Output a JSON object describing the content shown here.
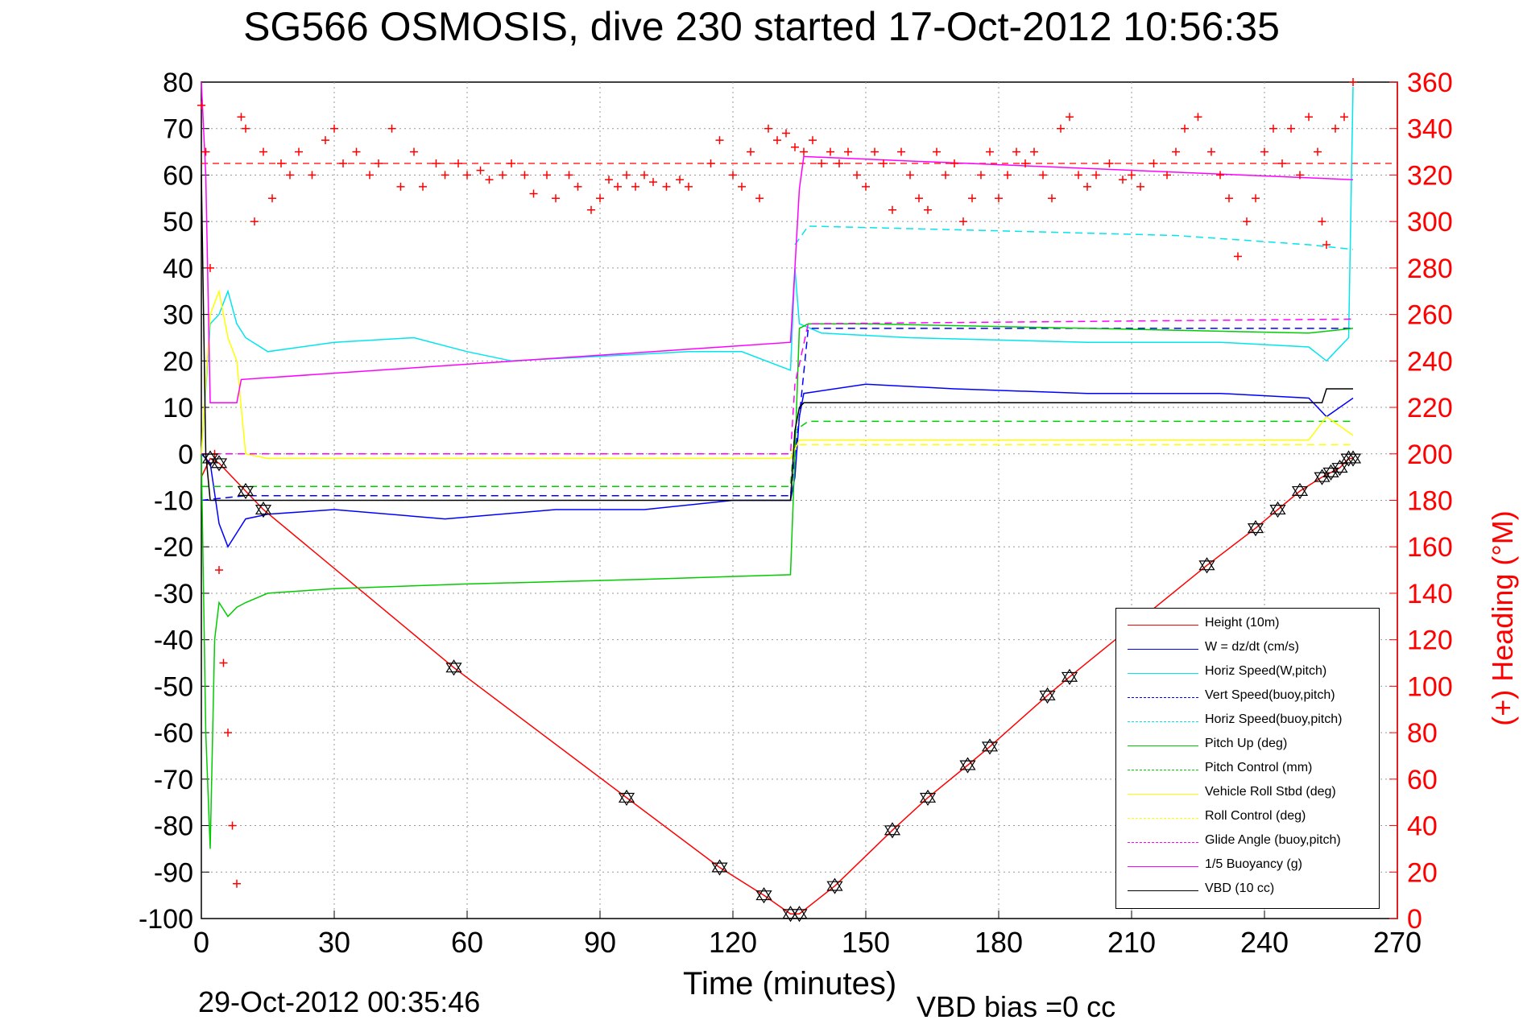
{
  "chart_data": {
    "type": "line",
    "title": "SG566 OSMOSIS, dive 230 started 17-Oct-2012 10:56:35",
    "xlabel": "Time (minutes)",
    "ylabel": "",
    "y2label": "(+) Heading (°M)",
    "xlim": [
      0,
      270
    ],
    "ylim": [
      -100,
      80
    ],
    "y2lim": [
      0,
      360
    ],
    "x_ticks": [
      0,
      30,
      60,
      90,
      120,
      150,
      180,
      210,
      240,
      270
    ],
    "y_ticks": [
      80,
      70,
      60,
      50,
      40,
      30,
      20,
      10,
      0,
      -10,
      -20,
      -30,
      -40,
      -50,
      -60,
      -70,
      -80,
      -90,
      -100
    ],
    "y2_ticks": [
      360,
      340,
      320,
      300,
      280,
      260,
      240,
      220,
      200,
      180,
      160,
      140,
      120,
      100,
      80,
      60,
      40,
      20,
      0
    ],
    "grid": true,
    "legend_position": "bottom-right",
    "footer_date": "29-Oct-2012 00:35:46",
    "footer_vbd": "VBD bias =0 cc",
    "series": [
      {
        "name": "Height (10m)",
        "color": "#ff0000",
        "style": "solid",
        "x": [
          0,
          2,
          4,
          10,
          14,
          57,
          96,
          117,
          127,
          133,
          135,
          143,
          156,
          164,
          173,
          178,
          191,
          196,
          227,
          238,
          243,
          248,
          253,
          255,
          257,
          259,
          260
        ],
        "y": [
          -5,
          -1,
          -2,
          -8,
          -12,
          -46,
          -74,
          -89,
          -95,
          -99,
          -99,
          -93,
          -81,
          -74,
          -67,
          -63,
          -52,
          -48,
          -24,
          -16,
          -12,
          -8,
          -5,
          -4,
          -3,
          -1,
          -1
        ]
      },
      {
        "name": "W = dz/dt (cm/s)",
        "color": "#0000ff",
        "style": "solid",
        "x": [
          0,
          2,
          4,
          6,
          8,
          10,
          15,
          30,
          55,
          80,
          100,
          120,
          133,
          134,
          135,
          136,
          150,
          170,
          200,
          230,
          250,
          254,
          260
        ],
        "y": [
          0,
          -2,
          -15,
          -20,
          -17,
          -14,
          -13,
          -12,
          -14,
          -12,
          -12,
          -10,
          -10,
          -5,
          8,
          13,
          15,
          14,
          13,
          13,
          12,
          8,
          12
        ]
      },
      {
        "name": "Horiz Speed(W,pitch)",
        "color": "#00e5ee",
        "style": "solid",
        "x": [
          0,
          2,
          4,
          6,
          8,
          10,
          15,
          30,
          48,
          60,
          70,
          90,
          110,
          122,
          133,
          134,
          135,
          140,
          160,
          200,
          230,
          250,
          254,
          259,
          260
        ],
        "y": [
          0,
          28,
          30,
          35,
          28,
          25,
          22,
          24,
          25,
          22,
          20,
          21,
          22,
          22,
          18,
          40,
          28,
          26,
          25,
          24,
          24,
          23,
          20,
          25,
          79
        ]
      },
      {
        "name": "Vert Speed(buoy,pitch)",
        "color": "#0000ff",
        "style": "dashed",
        "x": [
          0,
          10,
          133,
          135,
          137,
          260
        ],
        "y": [
          -10,
          -9,
          -9,
          8,
          27,
          27
        ]
      },
      {
        "name": "Horiz Speed(buoy,pitch)",
        "color": "#00e5ee",
        "style": "dashed",
        "x": [
          134,
          137,
          180,
          220,
          250,
          260
        ],
        "y": [
          45,
          49,
          48,
          47,
          45,
          44
        ]
      },
      {
        "name": "Pitch Up (deg)",
        "color": "#00cc00",
        "style": "solid",
        "x": [
          0,
          1,
          2,
          3,
          4,
          6,
          8,
          10,
          15,
          30,
          60,
          100,
          133,
          134,
          135,
          137,
          150,
          200,
          250,
          260
        ],
        "y": [
          0,
          -60,
          -85,
          -40,
          -32,
          -35,
          -33,
          -32,
          -30,
          -29,
          -28,
          -27,
          -26,
          0,
          27,
          28,
          28,
          27,
          26,
          27
        ]
      },
      {
        "name": "Pitch Control (mm)",
        "color": "#00cc00",
        "style": "dashed",
        "x": [
          0,
          10,
          133,
          134,
          137,
          260
        ],
        "y": [
          -7,
          -7,
          -7,
          5,
          7,
          7
        ]
      },
      {
        "name": "Vehicle Roll Stbd (deg)",
        "color": "#ffff00",
        "style": "solid",
        "x": [
          0,
          2,
          4,
          6,
          8,
          10,
          15,
          60,
          100,
          133,
          135,
          140,
          200,
          250,
          254,
          260
        ],
        "y": [
          0,
          30,
          35,
          25,
          20,
          0,
          -1,
          -1,
          -1,
          -1,
          3,
          3,
          3,
          3,
          8,
          4
        ]
      },
      {
        "name": "Roll Control (deg)",
        "color": "#ffff00",
        "style": "dashed",
        "x": [
          0,
          8,
          133,
          134,
          260
        ],
        "y": [
          0,
          0,
          0,
          2,
          2
        ]
      },
      {
        "name": "Glide Angle (buoy,pitch)",
        "color": "#ff00ff",
        "style": "dashed",
        "x": [
          0,
          133,
          134,
          137,
          260
        ],
        "y": [
          0,
          0,
          15,
          28,
          29
        ]
      },
      {
        "name": "1/5 Buoyancy (g)",
        "color": "#ff00ff",
        "style": "solid",
        "x": [
          0,
          1,
          2,
          8,
          9,
          133,
          134,
          135,
          136,
          260
        ],
        "y": [
          80,
          60,
          11,
          11,
          16,
          24,
          40,
          57,
          64,
          59
        ]
      },
      {
        "name": "VBD (10 cc)",
        "color": "#000000",
        "style": "solid",
        "x": [
          0,
          1,
          2,
          133,
          134,
          135,
          136,
          253,
          254,
          260
        ],
        "y": [
          60,
          0,
          -10,
          -10,
          5,
          10,
          11,
          11,
          14,
          14
        ]
      }
    ],
    "heading_series": {
      "name": "Heading",
      "color": "#ff0000",
      "marker": "+",
      "reference_line_value": 325,
      "x": [
        0,
        1,
        2,
        3,
        4,
        5,
        6,
        7,
        8,
        9,
        10,
        12,
        14,
        16,
        18,
        20,
        22,
        25,
        28,
        30,
        32,
        35,
        38,
        40,
        43,
        45,
        48,
        50,
        53,
        55,
        58,
        60,
        63,
        65,
        68,
        70,
        73,
        75,
        78,
        80,
        83,
        85,
        88,
        90,
        92,
        94,
        96,
        98,
        100,
        102,
        105,
        108,
        110,
        115,
        117,
        120,
        122,
        124,
        126,
        128,
        130,
        132,
        134,
        136,
        138,
        140,
        142,
        144,
        146,
        148,
        150,
        152,
        154,
        156,
        158,
        160,
        162,
        164,
        166,
        168,
        170,
        172,
        174,
        176,
        178,
        180,
        182,
        184,
        186,
        188,
        190,
        192,
        194,
        196,
        198,
        200,
        202,
        205,
        208,
        210,
        212,
        215,
        218,
        220,
        222,
        225,
        228,
        230,
        232,
        234,
        236,
        238,
        240,
        242,
        244,
        246,
        248,
        250,
        252,
        253,
        254,
        256,
        258,
        260
      ],
      "y": [
        350,
        330,
        280,
        200,
        150,
        110,
        80,
        40,
        15,
        345,
        340,
        300,
        330,
        310,
        325,
        320,
        330,
        320,
        335,
        340,
        325,
        330,
        320,
        325,
        340,
        315,
        330,
        315,
        325,
        320,
        325,
        320,
        322,
        318,
        320,
        325,
        320,
        312,
        320,
        310,
        320,
        315,
        305,
        310,
        318,
        315,
        320,
        315,
        320,
        317,
        315,
        318,
        315,
        325,
        335,
        320,
        315,
        330,
        310,
        340,
        335,
        338,
        332,
        330,
        335,
        325,
        330,
        325,
        330,
        320,
        315,
        330,
        325,
        305,
        330,
        320,
        310,
        305,
        330,
        320,
        325,
        300,
        310,
        320,
        330,
        310,
        320,
        330,
        325,
        330,
        320,
        310,
        340,
        345,
        320,
        315,
        320,
        325,
        318,
        320,
        315,
        325,
        320,
        330,
        340,
        345,
        330,
        320,
        310,
        285,
        300,
        310,
        330,
        340,
        325,
        340,
        320,
        345,
        330,
        300,
        290,
        340,
        345,
        360
      ]
    }
  }
}
